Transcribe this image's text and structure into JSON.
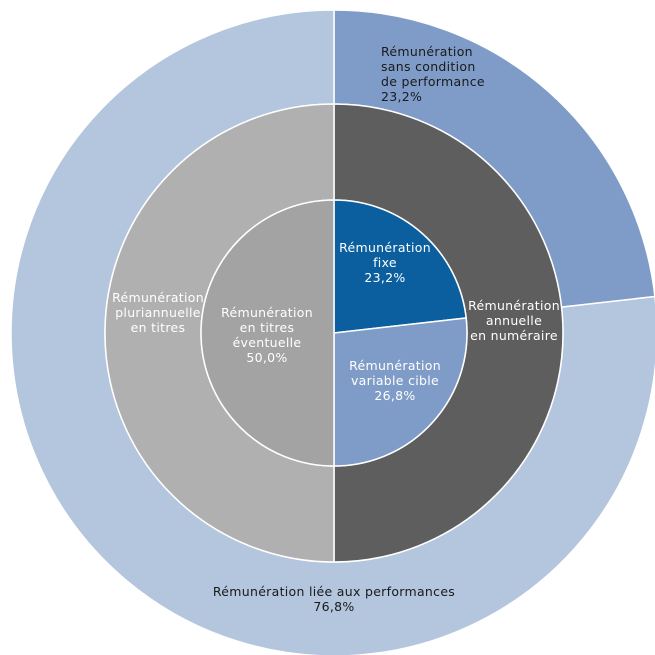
{
  "chart_data": {
    "type": "sunburst",
    "unit": "%",
    "rings": [
      {
        "ring": "outer",
        "slices": [
          {
            "id": "sans_condition",
            "lines": [
              "Rémunération",
              "sans condition",
              "de performance",
              "23,2%"
            ],
            "value": 23.2,
            "color": "#7f9cc8",
            "text_color": "#1a1a1a"
          },
          {
            "id": "liee_perf",
            "lines": [
              "Rémunération  liée aux performances",
              "76,8%"
            ],
            "value": 76.8,
            "color": "#b4c5de",
            "text_color": "#1a1a1a"
          }
        ]
      },
      {
        "ring": "middle",
        "slices": [
          {
            "id": "annuelle",
            "lines": [
              "Rémunération",
              "annuelle",
              "en numéraire"
            ],
            "value": 50.0,
            "color": "#5e5e5e",
            "text_color": "#ffffff"
          },
          {
            "id": "pluriannuelle",
            "lines": [
              "Rémunération",
              "pluriannuelle",
              "en titres"
            ],
            "value": 50.0,
            "color": "#b0b0b0",
            "text_color": "#ffffff"
          }
        ]
      },
      {
        "ring": "inner",
        "slices": [
          {
            "id": "fixe",
            "lines": [
              "Rémunération",
              "fixe",
              "23,2%"
            ],
            "value": 23.2,
            "color": "#0b5f9e",
            "text_color": "#ffffff"
          },
          {
            "id": "variable",
            "lines": [
              "Rémunération",
              "variable cible",
              "26,8%"
            ],
            "value": 26.8,
            "color": "#7f9cc8",
            "text_color": "#ffffff"
          },
          {
            "id": "titres",
            "lines": [
              "Rémunération",
              "en titres",
              "éventuelle",
              "50,0%"
            ],
            "value": 50.0,
            "color": "#a3a3a3",
            "text_color": "#ffffff"
          }
        ]
      }
    ]
  }
}
